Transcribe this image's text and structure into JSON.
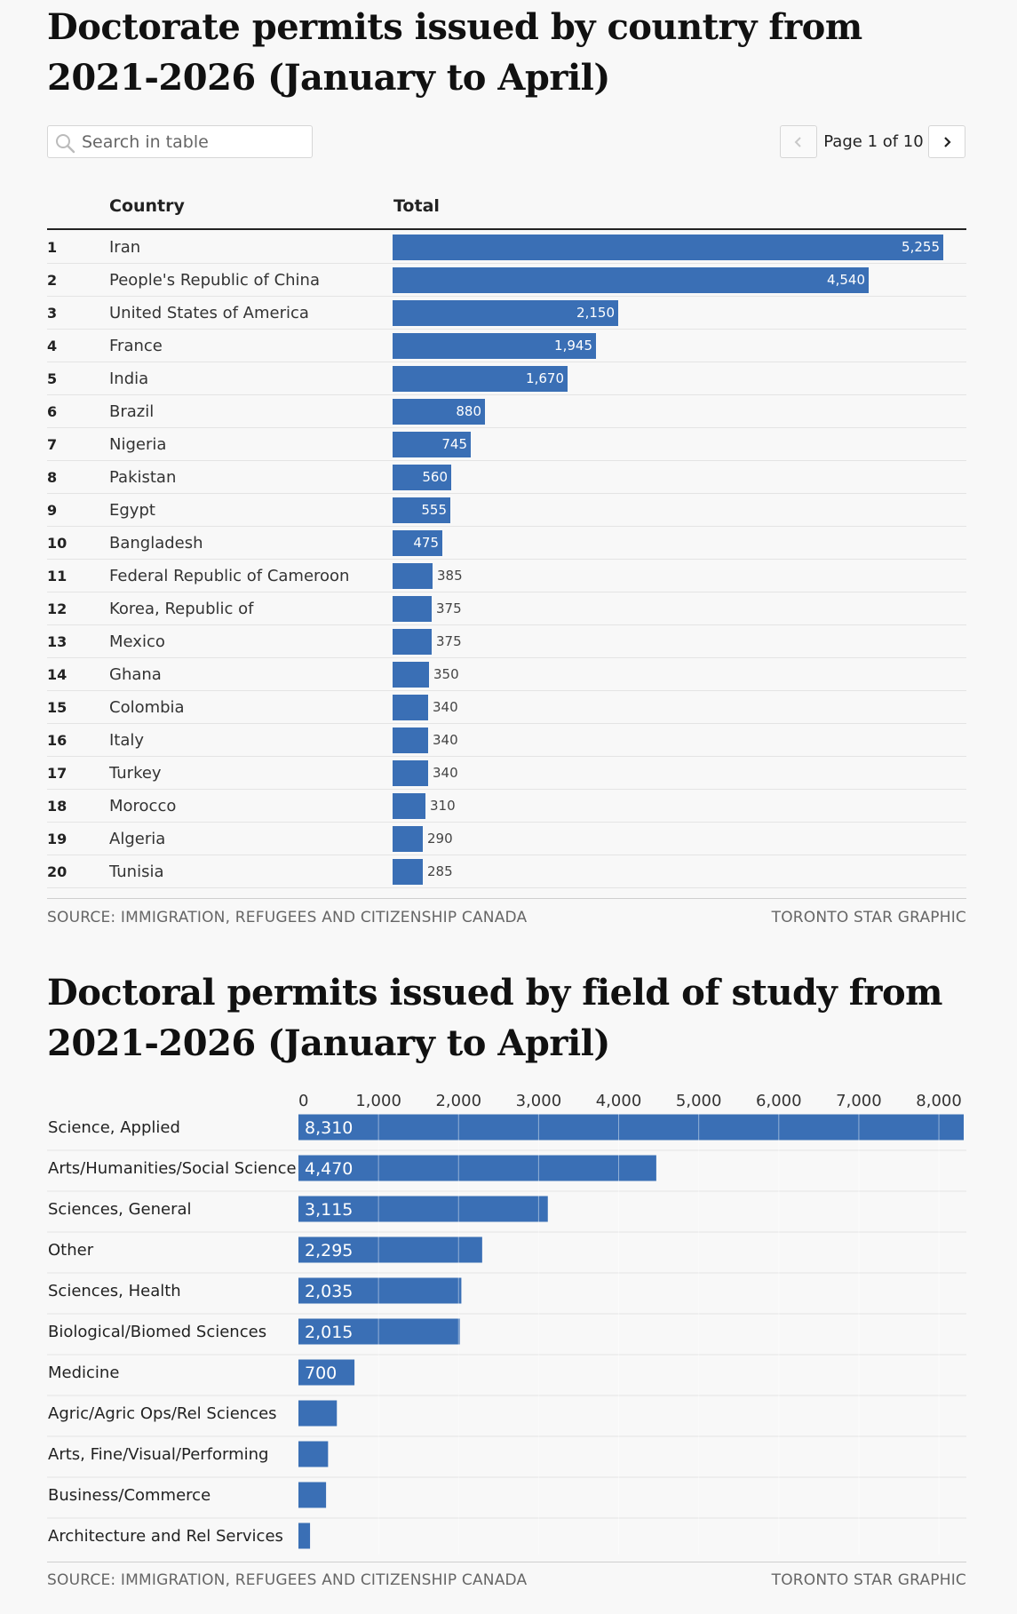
{
  "table": {
    "title": "Doctorate permits issued by country from 2021-2026 (January to April)",
    "search_placeholder": "Search in table",
    "page_label": "Page 1 of 10",
    "columns": {
      "country": "Country",
      "total": "Total"
    },
    "bar_color": "#3a6fb5",
    "icons": {
      "search": "search-icon",
      "prev": "chevron-left-icon",
      "next": "chevron-right-icon"
    },
    "rows": [
      {
        "rank": "1",
        "country": "Iran",
        "total": 5255,
        "label": "5,255"
      },
      {
        "rank": "2",
        "country": "People's Republic of China",
        "total": 4540,
        "label": "4,540"
      },
      {
        "rank": "3",
        "country": "United States of America",
        "total": 2150,
        "label": "2,150"
      },
      {
        "rank": "4",
        "country": "France",
        "total": 1945,
        "label": "1,945"
      },
      {
        "rank": "5",
        "country": "India",
        "total": 1670,
        "label": "1,670"
      },
      {
        "rank": "6",
        "country": "Brazil",
        "total": 880,
        "label": "880"
      },
      {
        "rank": "7",
        "country": "Nigeria",
        "total": 745,
        "label": "745"
      },
      {
        "rank": "8",
        "country": "Pakistan",
        "total": 560,
        "label": "560"
      },
      {
        "rank": "9",
        "country": "Egypt",
        "total": 555,
        "label": "555"
      },
      {
        "rank": "10",
        "country": "Bangladesh",
        "total": 475,
        "label": "475"
      },
      {
        "rank": "11",
        "country": "Federal Republic of Cameroon",
        "total": 385,
        "label": "385"
      },
      {
        "rank": "12",
        "country": "Korea, Republic of",
        "total": 375,
        "label": "375"
      },
      {
        "rank": "13",
        "country": "Mexico",
        "total": 375,
        "label": "375"
      },
      {
        "rank": "14",
        "country": "Ghana",
        "total": 350,
        "label": "350"
      },
      {
        "rank": "15",
        "country": "Colombia",
        "total": 340,
        "label": "340"
      },
      {
        "rank": "16",
        "country": "Italy",
        "total": 340,
        "label": "340"
      },
      {
        "rank": "17",
        "country": "Turkey",
        "total": 340,
        "label": "340"
      },
      {
        "rank": "18",
        "country": "Morocco",
        "total": 310,
        "label": "310"
      },
      {
        "rank": "19",
        "country": "Algeria",
        "total": 290,
        "label": "290"
      },
      {
        "rank": "20",
        "country": "Tunisia",
        "total": 285,
        "label": "285"
      }
    ],
    "source": "SOURCE: IMMIGRATION, REFUGEES AND CITIZENSHIP CANADA",
    "credit": "TORONTO STAR GRAPHIC"
  },
  "chart_data": {
    "type": "bar",
    "orientation": "horizontal",
    "title": "Doctoral permits issued by field of study from 2021-2026 (January to April)",
    "xlim": [
      0,
      8310
    ],
    "xticks": [
      0,
      1000,
      2000,
      3000,
      4000,
      5000,
      6000,
      7000,
      8000
    ],
    "xtick_labels": [
      "0",
      "1,000",
      "2,000",
      "3,000",
      "4,000",
      "5,000",
      "6,000",
      "7,000",
      "8,000"
    ],
    "grid": true,
    "axis_position": "top",
    "color": "#3a6fb5",
    "categories": [
      "Science, Applied",
      "Arts/Humanities/Social Science",
      "Sciences, General",
      "Other",
      "Sciences, Health",
      "Biological/Biomed Sciences",
      "Medicine",
      "Agric/Agric Ops/Rel Sciences",
      "Arts, Fine/Visual/Performing",
      "Business/Commerce",
      "Architecture and Rel Services"
    ],
    "values": [
      8310,
      4470,
      3115,
      2295,
      2035,
      2015,
      700,
      480,
      370,
      345,
      145
    ],
    "value_labels": [
      "8,310",
      "4,470",
      "3,115",
      "2,295",
      "2,035",
      "2,015",
      "700",
      "",
      "",
      "",
      ""
    ],
    "source": "SOURCE: IMMIGRATION, REFUGEES AND CITIZENSHIP CANADA",
    "credit": "TORONTO STAR GRAPHIC"
  }
}
